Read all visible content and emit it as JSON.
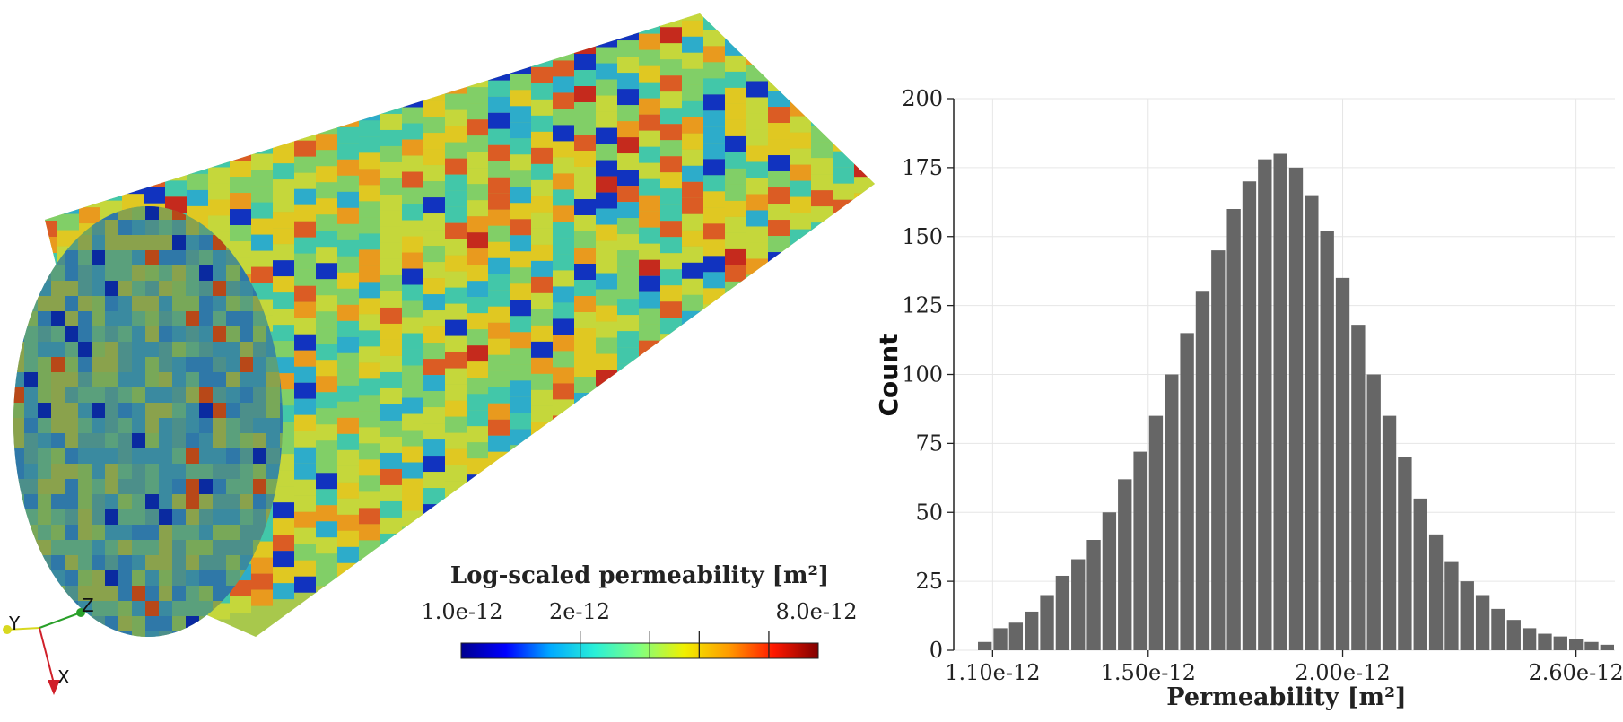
{
  "colorbar": {
    "title": "Log-scaled permeability [m²]",
    "min_label": "1.0e-12",
    "mid_label": "2e-12",
    "max_label": "8.0e-12",
    "min_value": 1e-12,
    "max_value": 8e-12,
    "tick_values": [
      2e-12,
      3e-12,
      4e-12,
      6e-12
    ],
    "colors": [
      "#00008f",
      "#0000ff",
      "#00aaff",
      "#29f0d7",
      "#80ff80",
      "#f0f000",
      "#ff9a00",
      "#ff1800",
      "#800000"
    ]
  },
  "orientation_axes": {
    "x_label": "X",
    "y_label": "Y",
    "z_label": "Z",
    "x_color": "#d0202a",
    "y_color": "#d8d820",
    "z_color": "#2aa02a"
  },
  "chart_data": {
    "type": "bar",
    "title": "",
    "xlabel": "Permeability [m²]",
    "ylabel": "Count",
    "xlim": [
      1e-12,
      2.7e-12
    ],
    "ylim": [
      0,
      200
    ],
    "x_ticks": [
      1.1e-12,
      1.5e-12,
      2e-12,
      2.6e-12
    ],
    "x_tick_labels": [
      "1.10e-12",
      "1.50e-12",
      "2.00e-12",
      "2.60e-12"
    ],
    "y_ticks": [
      0,
      25,
      50,
      75,
      100,
      125,
      150,
      175,
      200
    ],
    "y_tick_labels": [
      "0",
      "25",
      "50",
      "75",
      "100",
      "125",
      "150",
      "175",
      "200"
    ],
    "grid": true,
    "bar_color": "#666666",
    "bins_x": [
      1.08e-12,
      1.12e-12,
      1.16e-12,
      1.2e-12,
      1.24e-12,
      1.28e-12,
      1.32e-12,
      1.36e-12,
      1.4e-12,
      1.44e-12,
      1.48e-12,
      1.52e-12,
      1.56e-12,
      1.6e-12,
      1.64e-12,
      1.68e-12,
      1.72e-12,
      1.76e-12,
      1.8e-12,
      1.84e-12,
      1.88e-12,
      1.92e-12,
      1.96e-12,
      2e-12,
      2.04e-12,
      2.08e-12,
      2.12e-12,
      2.16e-12,
      2.2e-12,
      2.24e-12,
      2.28e-12,
      2.32e-12,
      2.36e-12,
      2.4e-12,
      2.44e-12,
      2.48e-12,
      2.52e-12,
      2.56e-12,
      2.6e-12,
      2.64e-12,
      2.68e-12
    ],
    "counts": [
      3,
      8,
      10,
      14,
      20,
      27,
      33,
      40,
      50,
      62,
      72,
      85,
      100,
      115,
      130,
      145,
      160,
      170,
      178,
      180,
      175,
      165,
      152,
      135,
      118,
      100,
      85,
      70,
      55,
      42,
      32,
      25,
      20,
      15,
      11,
      8,
      6,
      5,
      4,
      3,
      2
    ]
  }
}
